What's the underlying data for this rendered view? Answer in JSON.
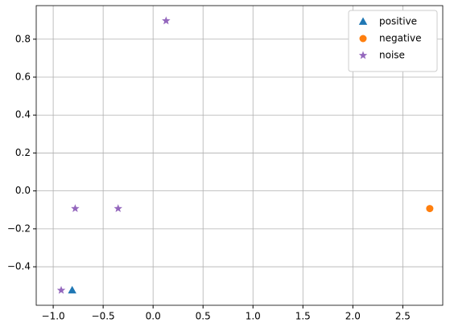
{
  "chart_data": {
    "type": "scatter",
    "series": [
      {
        "name": "positive",
        "color": "#1f77b4",
        "marker": "triangle",
        "x": [
          -0.81
        ],
        "values": [
          -0.524
        ]
      },
      {
        "name": "negative",
        "color": "#ff7f0e",
        "marker": "circle",
        "x": [
          2.77
        ],
        "values": [
          -0.093
        ]
      },
      {
        "name": "noise",
        "color": "#9467bd",
        "marker": "star",
        "x": [
          0.13,
          -0.78,
          -0.35,
          -0.92
        ],
        "values": [
          0.897,
          -0.093,
          -0.093,
          -0.524
        ]
      }
    ],
    "xlim": [
      -1.17,
      2.9
    ],
    "xticks": [
      {
        "value": -1,
        "label": "−1.0"
      },
      {
        "value": -0.5,
        "label": "−0.5"
      },
      {
        "value": 0,
        "label": "0.0"
      },
      0.5,
      {
        "value": 1,
        "label": "1.0"
      },
      1.5,
      {
        "value": 2,
        "label": "2.0"
      },
      2.5
    ],
    "ylim": [
      -0.603,
      0.977
    ],
    "yticks": [
      {
        "value": -0.4,
        "label": "−0.4"
      },
      {
        "value": -0.2,
        "label": "−0.2"
      },
      {
        "value": 0,
        "label": "0.0"
      },
      0.2,
      0.4,
      0.6,
      0.8
    ],
    "grid": true,
    "legend": "upper-right"
  }
}
